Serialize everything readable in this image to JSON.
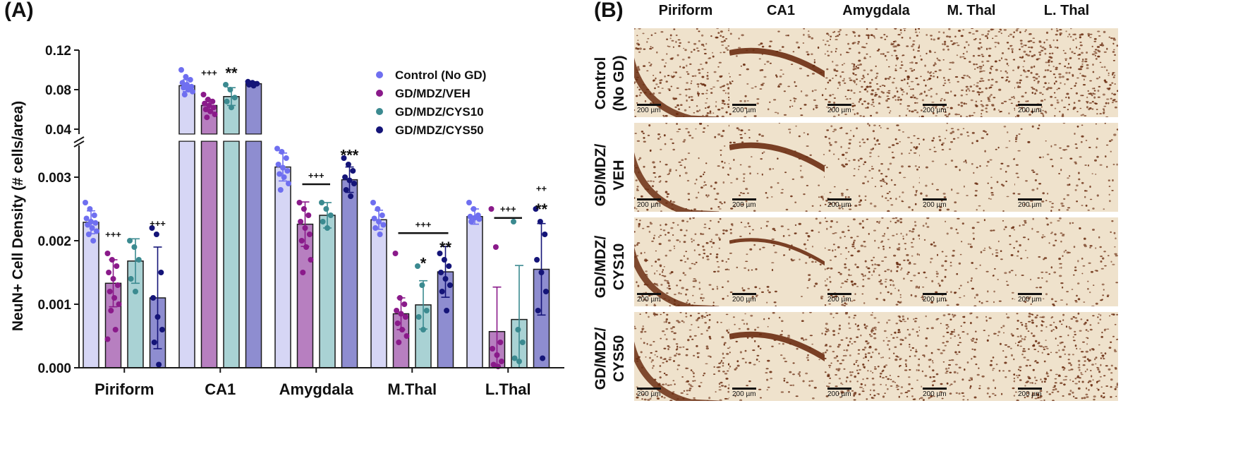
{
  "panel_a_label": "(A)",
  "panel_b_label": "(B)",
  "chart_data": {
    "type": "bar",
    "title": "",
    "xlabel": "",
    "ylabel": "NeuN+ Cell Density (# cells/area)",
    "categories": [
      "Piriform",
      "CA1",
      "Amygdala",
      "M.Thal",
      "L.Thal"
    ],
    "axis_break": true,
    "lower_segment": {
      "ylim": [
        0,
        0.0035
      ],
      "ticks": [
        "0.000",
        "0.001",
        "0.002",
        "0.003"
      ],
      "tick_values": [
        0,
        0.001,
        0.002,
        0.003
      ]
    },
    "upper_segment": {
      "ylim": [
        0.035,
        0.12
      ],
      "ticks": [
        "0.04",
        "0.08",
        "0.12"
      ],
      "tick_values": [
        0.04,
        0.08,
        0.12
      ]
    },
    "legend_placement": "top-right",
    "series": [
      {
        "name": "Control (No GD)",
        "color": "#d6d6f5",
        "point_color": "#6f6ff0",
        "values": [
          0.00229,
          0.084,
          0.00316,
          0.00233,
          0.00238
        ],
        "sd": [
          0.00018,
          0.006,
          0.00022,
          0.00015,
          0.00012
        ],
        "points": [
          [
            0.0026,
            0.0025,
            0.0024,
            0.00235,
            0.0023,
            0.00228,
            0.00225,
            0.0022,
            0.00215,
            0.0021,
            0.002
          ],
          [
            0.1,
            0.093,
            0.09,
            0.087,
            0.085,
            0.083,
            0.082,
            0.08,
            0.078,
            0.075
          ],
          [
            0.00345,
            0.0034,
            0.0033,
            0.0032,
            0.00315,
            0.0031,
            0.00305,
            0.003,
            0.0029,
            0.0028
          ],
          [
            0.0026,
            0.0025,
            0.0024,
            0.00235,
            0.0023,
            0.00225,
            0.0022,
            0.0021
          ],
          [
            0.0026,
            0.0025,
            0.0024,
            0.00238,
            0.00236,
            0.00234,
            0.0023
          ]
        ]
      },
      {
        "name": "GD/MDZ/VEH",
        "color": "#b77fc0",
        "point_color": "#8a1a8a",
        "values": [
          0.00133,
          0.064,
          0.00226,
          0.00085,
          0.00057
        ],
        "sd": [
          0.00037,
          0.006,
          0.00035,
          0.00025,
          0.0007
        ],
        "points": [
          [
            0.0018,
            0.0017,
            0.0016,
            0.0015,
            0.0014,
            0.0013,
            0.0012,
            0.0011,
            0.001,
            0.0009,
            0.0006,
            0.00045
          ],
          [
            0.075,
            0.07,
            0.068,
            0.066,
            0.064,
            0.062,
            0.06,
            0.058,
            0.055,
            0.052
          ],
          [
            0.0026,
            0.0025,
            0.0024,
            0.0023,
            0.0022,
            0.0021,
            0.002,
            0.0019,
            0.0017,
            0.0015
          ],
          [
            0.0018,
            0.0011,
            0.001,
            0.0009,
            0.00085,
            0.0008,
            0.0007,
            0.0006,
            0.0005,
            0.0004
          ],
          [
            0.0025,
            0.0019,
            0.0004,
            0.0003,
            0.0002,
            0.0001,
            5e-05,
            2e-05
          ]
        ]
      },
      {
        "name": "GD/MDZ/CYS10",
        "color": "#a9d2d4",
        "point_color": "#3b8a90",
        "values": [
          0.00168,
          0.073,
          0.0024,
          0.00099,
          0.00076
        ],
        "sd": [
          0.00035,
          0.009,
          0.0002,
          0.00038,
          0.00085
        ],
        "points": [
          [
            0.002,
            0.0019,
            0.0017,
            0.0014,
            0.0012
          ],
          [
            0.085,
            0.08,
            0.072,
            0.068,
            0.062
          ],
          [
            0.0026,
            0.0025,
            0.0024,
            0.0023,
            0.0022
          ],
          [
            0.0016,
            0.0013,
            0.0009,
            0.0008,
            0.0006
          ],
          [
            0.0023,
            0.0006,
            0.0004,
            0.00015,
            0.0001
          ]
        ]
      },
      {
        "name": "GD/MDZ/CYS50",
        "color": "#8e8dd0",
        "point_color": "#141478",
        "values": [
          0.0011,
          0.086,
          0.00296,
          0.00151,
          0.00155
        ],
        "sd": [
          0.0008,
          0.002,
          0.0002,
          0.0004,
          0.00072
        ],
        "points": [
          [
            0.0022,
            0.0021,
            0.0015,
            0.0011,
            0.0008,
            0.0006,
            0.0004,
            5e-05
          ],
          [
            0.088,
            0.087,
            0.086,
            0.085,
            0.084
          ],
          [
            0.0033,
            0.0032,
            0.0031,
            0.003,
            0.00295,
            0.0029,
            0.0028,
            0.0027
          ],
          [
            0.0018,
            0.0017,
            0.0016,
            0.0015,
            0.0014,
            0.0013,
            0.0012,
            0.0009
          ],
          [
            0.0025,
            0.0023,
            0.0021,
            0.0017,
            0.0015,
            0.0012,
            0.0009,
            0.00015
          ]
        ]
      }
    ],
    "annotations": [
      {
        "text": "+++",
        "category": 0,
        "series": 1,
        "y": 0.00205
      },
      {
        "text": "+++",
        "category": 0,
        "series": 3,
        "y": 0.00222
      },
      {
        "text": "+++",
        "category": 1,
        "series": 1,
        "y": 0.094
      },
      {
        "text": "**",
        "category": 1,
        "series": 2,
        "y": 0.097
      },
      {
        "text": "+++",
        "category": 2,
        "series": 1,
        "y": 0.003,
        "line_to_series": 2
      },
      {
        "text": "***",
        "category": 2,
        "series": 3,
        "y": 0.00335
      },
      {
        "text": "+++",
        "category": 3,
        "series": 1,
        "y": 0.00223,
        "line_to_series": 3
      },
      {
        "text": "*",
        "category": 3,
        "series": 2,
        "y": 0.00165
      },
      {
        "text": "**",
        "category": 3,
        "series": 3,
        "y": 0.0019
      },
      {
        "text": "+++",
        "category": 4,
        "series": 1,
        "y": 0.00247,
        "line_to_series": 2
      },
      {
        "text": "++",
        "category": 4,
        "series": 3,
        "y": 0.00277
      },
      {
        "text": "**",
        "category": 4,
        "series": 3,
        "y": 0.0025
      }
    ]
  },
  "panel_b": {
    "columns": [
      "Piriform",
      "CA1",
      "Amygdala",
      "M. Thal",
      "L. Thal"
    ],
    "rows": [
      {
        "lines": [
          "Control",
          "(No GD)"
        ]
      },
      {
        "lines": [
          "GD/MDZ/",
          "VEH"
        ]
      },
      {
        "lines": [
          "GD/MDZ/",
          "CYS10"
        ]
      },
      {
        "lines": [
          "GD/MDZ/",
          "CYS50"
        ]
      }
    ],
    "scale_bar_label": "200 µm",
    "stain_background": "#efe2cc",
    "nuclei_color": "#6b2e12"
  }
}
